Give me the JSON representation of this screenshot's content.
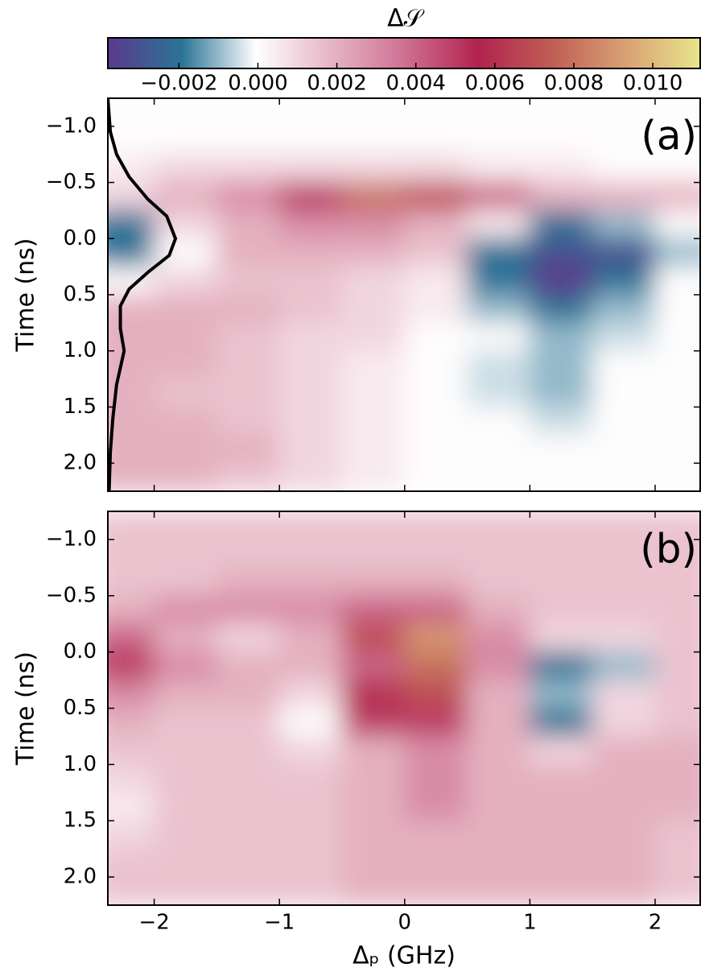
{
  "chart_data": [
    {
      "type": "colorbar",
      "title": "Δ𝒮",
      "clim": [
        -0.0038,
        0.0112
      ],
      "ticks": [
        {
          "value": -0.002,
          "label": "−0.002"
        },
        {
          "value": 0,
          "label": "0.000"
        },
        0.002,
        0.004,
        0.006,
        0.008,
        {
          "value": 0.01,
          "label": "0.010"
        }
      ],
      "colormap": [
        "#5b3a8c",
        "#2a7496",
        "#ffffff",
        "#e6b6c5",
        "#cf7193",
        "#b2234f",
        "#c05e55",
        "#d8a274",
        "#e8e58a"
      ]
    },
    {
      "type": "heatmap",
      "panel_label": "(a)",
      "ylabel": "Time (ns)",
      "xlim": [
        -2.37,
        2.36
      ],
      "ylim": [
        -1.25,
        2.25
      ],
      "yticks": [
        {
          "value": -1.0,
          "label": "−1.0"
        },
        {
          "value": -0.5,
          "label": "−0.5"
        },
        {
          "value": 0,
          "label": "0.0"
        },
        0.5,
        {
          "value": 1.0,
          "label": "1.0"
        },
        1.5,
        {
          "value": 2.0,
          "label": "2.0"
        }
      ],
      "x": [
        -2.25,
        -1.75,
        -1.25,
        -0.75,
        -0.25,
        0.25,
        0.75,
        1.25,
        1.75,
        2.25
      ],
      "y": [
        -1.125,
        -0.875,
        -0.625,
        -0.375,
        -0.125,
        0.125,
        0.375,
        0.625,
        0.875,
        1.125,
        1.375,
        1.625,
        1.875,
        2.125
      ],
      "z": [
        [
          0,
          0,
          0,
          0,
          0,
          0,
          0,
          0,
          0,
          0
        ],
        [
          0,
          0,
          0,
          0,
          0,
          0,
          0,
          0,
          0,
          0
        ],
        [
          0.0005,
          0.001,
          0.001,
          0.001,
          0.001,
          0.001,
          0.0005,
          0.0005,
          0,
          0
        ],
        [
          0.001,
          0.002,
          0.003,
          0.005,
          0.008,
          0.007,
          0.004,
          0.002,
          0.002,
          0.002
        ],
        [
          -0.002,
          0.001,
          0.002,
          0.003,
          0.003,
          0.002,
          0.0005,
          -0.002,
          -0.001,
          0
        ],
        [
          -0.002,
          0,
          0.002,
          0.002,
          0.002,
          0.0015,
          -0.002,
          -0.003,
          -0.003,
          -0.001
        ],
        [
          0,
          0.001,
          0.0015,
          0.0015,
          0.001,
          0.0005,
          -0.002,
          -0.004,
          -0.002,
          0
        ],
        [
          0.002,
          0.002,
          0.002,
          0.0015,
          0.001,
          0.0005,
          -0.001,
          -0.002,
          -0.001,
          0
        ],
        [
          0.002,
          0.002,
          0.0015,
          0.001,
          0.001,
          0,
          0,
          -0.001,
          -0.0005,
          0
        ],
        [
          0.002,
          0.002,
          0.0015,
          0.001,
          0.0005,
          0,
          -0.0005,
          -0.001,
          0,
          0
        ],
        [
          0.002,
          0.0015,
          0.0015,
          0.001,
          0.0005,
          0,
          -0.0005,
          -0.001,
          0,
          0
        ],
        [
          0.002,
          0.002,
          0.0015,
          0.001,
          0.0005,
          0,
          0,
          -0.0005,
          0,
          0
        ],
        [
          0.002,
          0.002,
          0.002,
          0.001,
          0.0005,
          0,
          0,
          0,
          0,
          0
        ],
        [
          0.002,
          0.002,
          0.0015,
          0.001,
          0.0005,
          0,
          0,
          0,
          0,
          0
        ]
      ],
      "series": [
        {
          "color": "#000000",
          "x": [
            -2.37,
            -2.35,
            -2.3,
            -2.2,
            -2.05,
            -1.9,
            -1.83,
            -1.88,
            -2.05,
            -2.2,
            -2.27,
            -2.27,
            -2.24,
            -2.3,
            -2.33,
            -2.35,
            -2.36
          ],
          "y": [
            -1.25,
            -0.95,
            -0.75,
            -0.55,
            -0.35,
            -0.2,
            0,
            0.15,
            0.3,
            0.45,
            0.6,
            0.8,
            1.0,
            1.3,
            1.6,
            1.9,
            2.25
          ]
        }
      ]
    },
    {
      "type": "heatmap",
      "panel_label": "(b)",
      "ylabel": "Time (ns)",
      "xlabel": "Δₚ (GHz)",
      "xlim": [
        -2.37,
        2.36
      ],
      "ylim": [
        -1.25,
        2.25
      ],
      "xticks": [
        {
          "value": -2,
          "label": "−2"
        },
        {
          "value": -1,
          "label": "−1"
        },
        0,
        1,
        2
      ],
      "yticks": [
        {
          "value": -1.0,
          "label": "−1.0"
        },
        {
          "value": -0.5,
          "label": "−0.5"
        },
        {
          "value": 0,
          "label": "0.0"
        },
        0.5,
        {
          "value": 1.0,
          "label": "1.0"
        },
        1.5,
        {
          "value": 2.0,
          "label": "2.0"
        }
      ],
      "x": [
        -2.25,
        -1.75,
        -1.25,
        -0.75,
        -0.25,
        0.25,
        0.75,
        1.25,
        1.75,
        2.25
      ],
      "y": [
        -1.125,
        -0.875,
        -0.625,
        -0.375,
        -0.125,
        0.125,
        0.375,
        0.625,
        0.875,
        1.125,
        1.375,
        1.625,
        1.875,
        2.125
      ],
      "z": [
        [
          0.0015,
          0.0015,
          0.0015,
          0.0015,
          0.0015,
          0.0015,
          0.0015,
          0.0015,
          0.0015,
          0.0015
        ],
        [
          0.0015,
          0.0015,
          0.0015,
          0.0015,
          0.0015,
          0.0015,
          0.0015,
          0.0015,
          0.0015,
          0.0015
        ],
        [
          0.0015,
          0.0015,
          0.002,
          0.002,
          0.002,
          0.002,
          0.0015,
          0.0015,
          0.0015,
          0.0015
        ],
        [
          0.002,
          0.003,
          0.003,
          0.003,
          0.004,
          0.004,
          0.002,
          0.0015,
          0.0015,
          0.0015
        ],
        [
          0.004,
          0.002,
          0.001,
          0.002,
          0.007,
          0.009,
          0.003,
          0.001,
          0.001,
          0.0015
        ],
        [
          0.005,
          0.003,
          0.002,
          0.002,
          0.004,
          0.008,
          0.003,
          -0.002,
          -0.001,
          0.0015
        ],
        [
          0.003,
          0.002,
          0.002,
          0.001,
          0.006,
          0.007,
          0.002,
          -0.001,
          0.001,
          0.0015
        ],
        [
          0.002,
          0.0015,
          0.0015,
          0,
          0.005,
          0.005,
          0.002,
          -0.002,
          0.001,
          0.0015
        ],
        [
          0.0015,
          0.0015,
          0.0015,
          0.001,
          0.002,
          0.003,
          0.002,
          0.001,
          0.002,
          0.002
        ],
        [
          0.001,
          0.0015,
          0.0015,
          0.0015,
          0.002,
          0.003,
          0.002,
          0.002,
          0.002,
          0.002
        ],
        [
          0.0005,
          0.0015,
          0.0015,
          0.0015,
          0.002,
          0.003,
          0.002,
          0.002,
          0.002,
          0.002
        ],
        [
          0.001,
          0.0015,
          0.0015,
          0.0015,
          0.002,
          0.002,
          0.002,
          0.002,
          0.002,
          0.0015
        ],
        [
          0.0015,
          0.0015,
          0.0015,
          0.0015,
          0.002,
          0.002,
          0.002,
          0.002,
          0.002,
          0.0015
        ],
        [
          0.0015,
          0.0015,
          0.0015,
          0.0015,
          0.002,
          0.002,
          0.002,
          0.002,
          0.002,
          0.0015
        ]
      ]
    }
  ]
}
